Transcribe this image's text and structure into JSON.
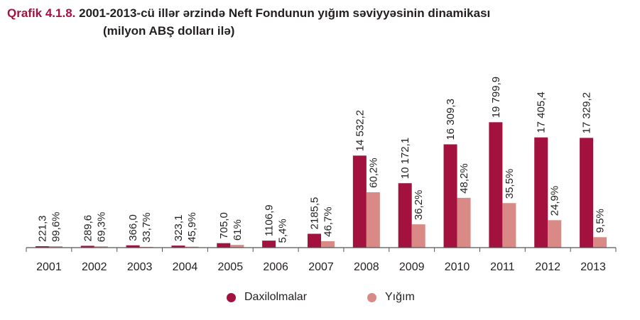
{
  "title": {
    "prefix": "Qrafik 4.1.8.",
    "text": "2001-2013-cü illər ərzində Neft Fondunun yığım səviyyəsinin dinamikası",
    "subtitle": "(milyon ABŞ dolları ilə)"
  },
  "colors": {
    "daxilolmalar": "#a3123f",
    "yigim": "#d98a86",
    "axis": "#555555"
  },
  "chart_data": {
    "type": "bar",
    "title": "Qrafik 4.1.8. 2001-2013-cü illər ərzində Neft Fondunun yığım səviyyəsinin dinamikası",
    "subtitle": "(milyon ABŞ dolları ilə)",
    "categories": [
      "2001",
      "2002",
      "2003",
      "2004",
      "2005",
      "2006",
      "2007",
      "2008",
      "2009",
      "2010",
      "2011",
      "2012",
      "2013"
    ],
    "series": [
      {
        "name": "Daxilolmalar",
        "values": [
          221.3,
          289.6,
          366.0,
          323.1,
          705.0,
          1106.9,
          2185.5,
          14532.2,
          10172.1,
          16309.3,
          19799.9,
          17405.4,
          17329.2
        ],
        "labels": [
          "221,3",
          "289,6",
          "366,0",
          "323,1",
          "705,0",
          "1106,9",
          "2185,5",
          "14 532,2",
          "10 172,1",
          "16 309,3",
          "19 799,9",
          "17 405,4",
          "17 329,2"
        ]
      },
      {
        "name": "Yığım",
        "values": [
          220.4,
          200.7,
          123.3,
          148.3,
          430.1,
          59.8,
          1020.6,
          8748.4,
          3682.3,
          7861.1,
          7029.0,
          4334.0,
          1646.3
        ],
        "labels": [
          "99,6%",
          "69,3%",
          "33,7%",
          "45,9%",
          "61%",
          "5,4%",
          "46,7%",
          "60,2%",
          "36,2%",
          "48,2%",
          "35,5%",
          "24,9%",
          "9,5%"
        ]
      }
    ],
    "ylim": [
      0,
      20000
    ],
    "grid": false,
    "legend": "bottom-center",
    "xlabel": "",
    "ylabel": ""
  }
}
